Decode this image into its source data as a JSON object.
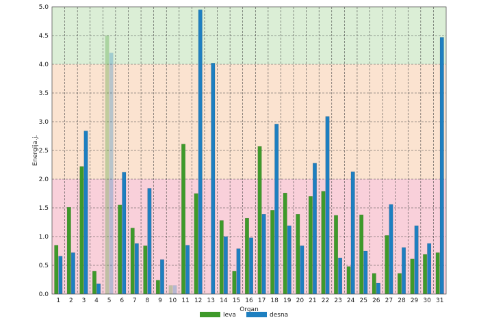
{
  "chart_data": {
    "type": "bar",
    "ylabel": "Energija.j.",
    "xlabel": "Organ",
    "ylim": [
      0,
      5
    ],
    "yticks": [
      "0.0",
      "0.5",
      "1.0",
      "1.5",
      "2.0",
      "2.5",
      "3.0",
      "3.5",
      "4.0",
      "4.5",
      "5.0"
    ],
    "grid": true,
    "legend_position": "bottom-center",
    "bands": [
      {
        "from": 0,
        "to": 2,
        "color": "#f9d0da"
      },
      {
        "from": 2,
        "to": 4,
        "color": "#fbe3d0"
      },
      {
        "from": 4,
        "to": 5,
        "color": "#dbeed6"
      }
    ],
    "categories": [
      "1",
      "2",
      "3",
      "4",
      "5",
      "6",
      "7",
      "8",
      "9",
      "10",
      "11",
      "12",
      "13",
      "14",
      "15",
      "16",
      "17",
      "18",
      "19",
      "20",
      "21",
      "22",
      "23",
      "24",
      "25",
      "26",
      "27",
      "28",
      "29",
      "30",
      "31"
    ],
    "faded_categories": [
      "5",
      "10"
    ],
    "series": [
      {
        "name": "leva",
        "color": "#3e9a2a",
        "values": [
          0.85,
          1.51,
          2.22,
          0.4,
          4.5,
          1.55,
          1.15,
          0.84,
          0.24,
          0.15,
          2.61,
          1.75,
          0.0,
          1.28,
          0.4,
          1.32,
          2.57,
          1.46,
          1.76,
          1.39,
          1.7,
          1.79,
          1.37,
          0.48,
          1.38,
          0.36,
          1.02,
          0.36,
          0.61,
          0.69,
          0.72
        ]
      },
      {
        "name": "desna",
        "color": "#1e7fc0",
        "values": [
          0.66,
          0.72,
          2.84,
          0.18,
          4.2,
          2.12,
          0.88,
          1.84,
          0.6,
          0.15,
          0.85,
          4.95,
          4.02,
          1.0,
          0.79,
          0.98,
          1.39,
          2.96,
          1.19,
          0.84,
          2.28,
          3.09,
          0.63,
          2.13,
          0.75,
          0.19,
          1.56,
          0.81,
          1.19,
          0.88,
          4.47
        ]
      }
    ]
  }
}
